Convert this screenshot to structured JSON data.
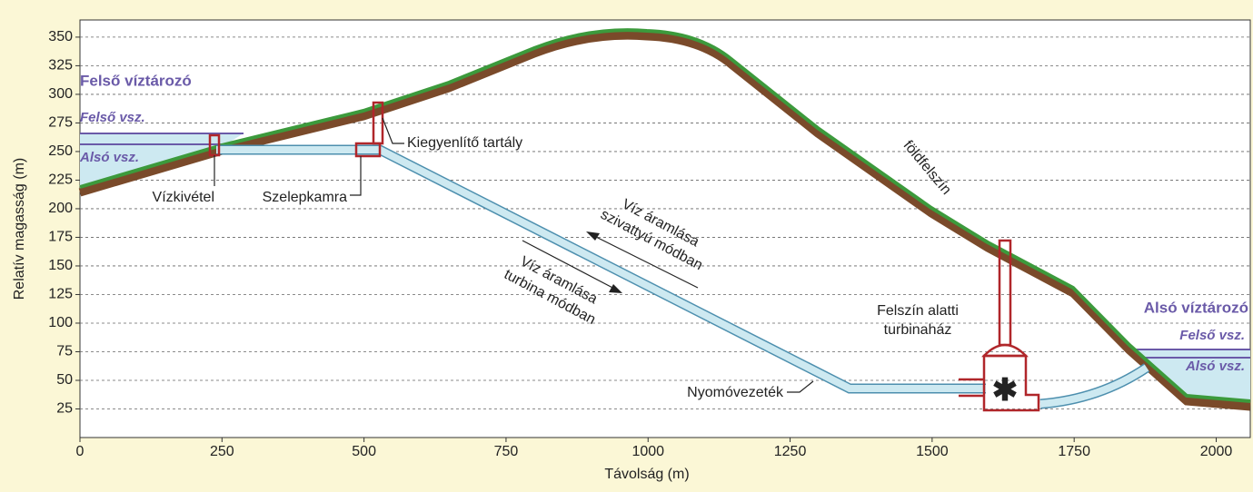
{
  "axes": {
    "xlabel": "Távolság (m)",
    "ylabel": "Relatív magasság (m)",
    "xlim": [
      0,
      2060
    ],
    "ylim": [
      0,
      365
    ],
    "xticks": [
      0,
      250,
      500,
      750,
      1000,
      1250,
      1500,
      1750,
      2000
    ],
    "yticks": [
      25,
      50,
      75,
      100,
      125,
      150,
      175,
      200,
      225,
      250,
      275,
      300,
      325,
      350
    ]
  },
  "labels": {
    "upper_reservoir": "Felső víztározó",
    "upper_high": "Felső vsz.",
    "upper_low": "Alsó vsz.",
    "intake": "Vízkivétel",
    "valve_chamber": "Szelepkamra",
    "surge_tank": "Kiegyenlítő tartály",
    "surface": "földfelszín",
    "pump_flow": [
      "Víz áramlása",
      "szivattyú módban"
    ],
    "turbine_flow": [
      "Víz áramlása",
      "turbina módban"
    ],
    "powerhouse": [
      "Felszín alatti",
      "turbinaház"
    ],
    "penstock": "Nyomóvezeték",
    "lower_reservoir": "Alsó víztározó",
    "lower_high": "Felső vsz.",
    "lower_low": "Alsó vsz."
  }
}
